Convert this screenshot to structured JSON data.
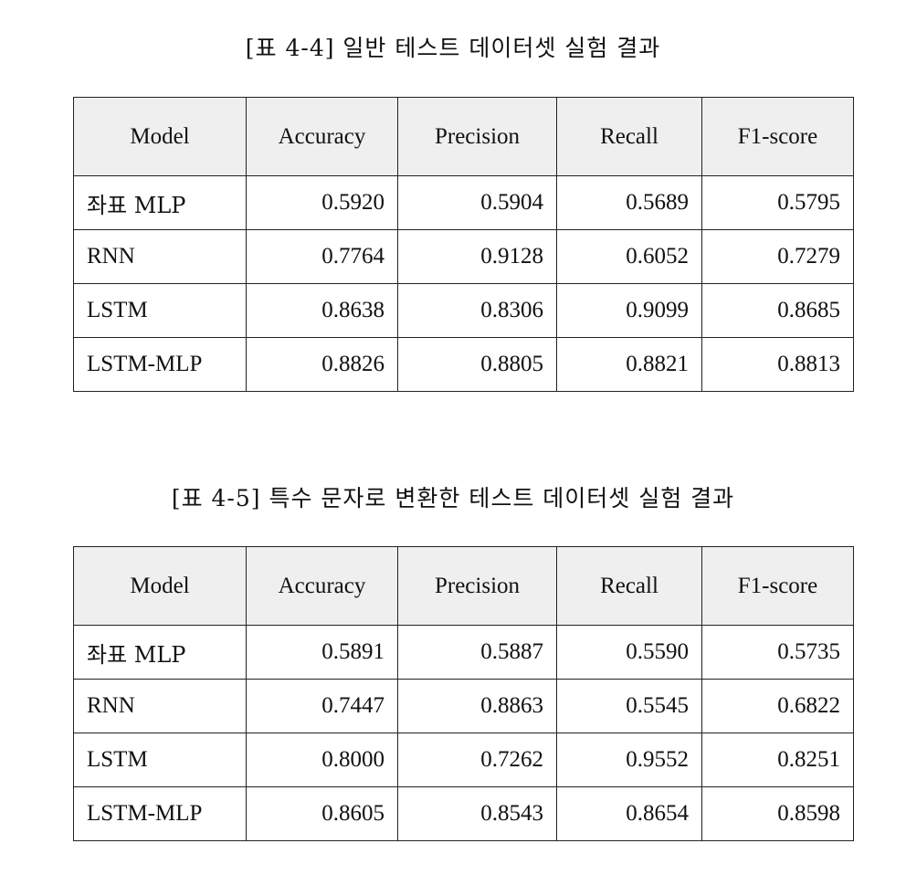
{
  "headers": [
    "Model",
    "Accuracy",
    "Precision",
    "Recall",
    "F1-score"
  ],
  "tables": [
    {
      "caption": "[표 4-4] 일반 테스트 데이터셋 실험 결과",
      "rows": [
        {
          "model": "좌표 MLP",
          "accuracy": "0.5920",
          "precision": "0.5904",
          "recall": "0.5689",
          "f1": "0.5795"
        },
        {
          "model": "RNN",
          "accuracy": "0.7764",
          "precision": "0.9128",
          "recall": "0.6052",
          "f1": "0.7279"
        },
        {
          "model": "LSTM",
          "accuracy": "0.8638",
          "precision": "0.8306",
          "recall": "0.9099",
          "f1": "0.8685"
        },
        {
          "model": "LSTM-MLP",
          "accuracy": "0.8826",
          "precision": "0.8805",
          "recall": "0.8821",
          "f1": "0.8813"
        }
      ]
    },
    {
      "caption": "[표 4-5] 특수 문자로 변환한 테스트 데이터셋 실험 결과",
      "rows": [
        {
          "model": "좌표 MLP",
          "accuracy": "0.5891",
          "precision": "0.5887",
          "recall": "0.5590",
          "f1": "0.5735"
        },
        {
          "model": "RNN",
          "accuracy": "0.7447",
          "precision": "0.8863",
          "recall": "0.5545",
          "f1": "0.6822"
        },
        {
          "model": "LSTM",
          "accuracy": "0.8000",
          "precision": "0.7262",
          "recall": "0.9552",
          "f1": "0.8251"
        },
        {
          "model": "LSTM-MLP",
          "accuracy": "0.8605",
          "precision": "0.8543",
          "recall": "0.8654",
          "f1": "0.8598"
        }
      ]
    }
  ]
}
